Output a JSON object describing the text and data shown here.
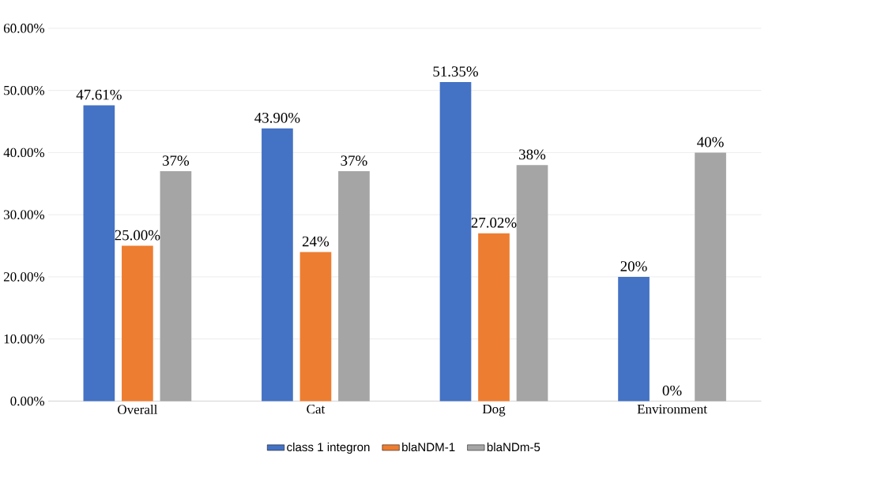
{
  "chart_data": {
    "type": "bar",
    "categories": [
      "Overall",
      "Cat",
      "Dog",
      "Environment"
    ],
    "series": [
      {
        "name": "class 1 integron",
        "color": "#4472c4",
        "values": [
          47.61,
          43.9,
          51.35,
          20
        ],
        "value_labels": [
          "47.61%",
          "43.90%",
          "51.35%",
          "20%"
        ]
      },
      {
        "name": "blaNDM-1",
        "color": "#ed7d31",
        "values": [
          25.0,
          24,
          27.02,
          0
        ],
        "value_labels": [
          "25.00%",
          "24%",
          "27.02%",
          "0%"
        ]
      },
      {
        "name": "blaNDm-5",
        "color": "#a5a5a5",
        "values": [
          37,
          37,
          38,
          40
        ],
        "value_labels": [
          "37%",
          "37%",
          "38%",
          "40%"
        ]
      }
    ],
    "ylim": [
      0,
      60
    ],
    "yticks": [
      {
        "value": 0,
        "label": "0.00%"
      },
      {
        "value": 10,
        "label": "10.00%"
      },
      {
        "value": 20,
        "label": "20.00%"
      },
      {
        "value": 30,
        "label": "30.00%"
      },
      {
        "value": 40,
        "label": "40.00%"
      },
      {
        "value": 50,
        "label": "50.00%"
      },
      {
        "value": 60,
        "label": "60.00%"
      }
    ],
    "grid": "y",
    "legend": "bottom"
  }
}
